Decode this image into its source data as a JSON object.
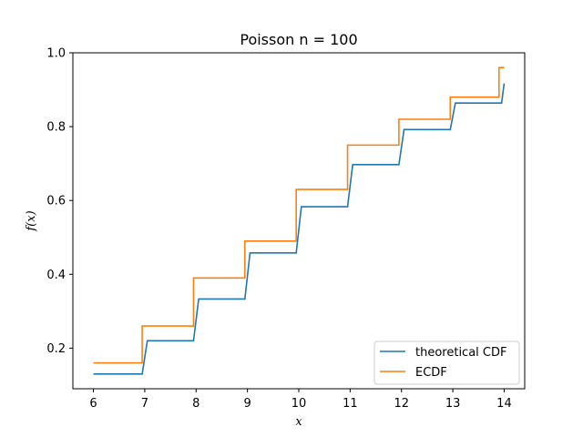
{
  "chart_data": {
    "type": "line",
    "title": "Poisson n = 100",
    "xlabel": "x",
    "ylabel": "f(x)",
    "xlim": [
      5.6,
      14.4
    ],
    "ylim": [
      0.09,
      1.0
    ],
    "xticks": [
      "6",
      "7",
      "8",
      "9",
      "10",
      "11",
      "12",
      "13",
      "14"
    ],
    "yticks": [
      "0.2",
      "0.4",
      "0.6",
      "0.8",
      "1.0"
    ],
    "grid": false,
    "legend_position": "lower-right",
    "series": [
      {
        "name": "theoretical CDF",
        "color": "#1f77b4",
        "x": [
          6,
          6.95,
          7.05,
          7.95,
          8.05,
          8.95,
          9.05,
          9.95,
          10.05,
          10.95,
          11.05,
          11.95,
          12.05,
          12.95,
          13.05,
          13.95,
          14.0
        ],
        "y": [
          0.13,
          0.13,
          0.22,
          0.22,
          0.333,
          0.333,
          0.458,
          0.458,
          0.583,
          0.583,
          0.697,
          0.697,
          0.792,
          0.792,
          0.864,
          0.864,
          0.917
        ]
      },
      {
        "name": "ECDF",
        "color": "#ff7f0e",
        "x": [
          6,
          6.95,
          6.95,
          7.95,
          7.95,
          8.95,
          8.95,
          9.95,
          9.95,
          10.95,
          10.95,
          11.95,
          11.95,
          12.95,
          12.95,
          13.9,
          13.9,
          14.0
        ],
        "y": [
          0.16,
          0.16,
          0.26,
          0.26,
          0.39,
          0.39,
          0.49,
          0.49,
          0.63,
          0.63,
          0.75,
          0.75,
          0.82,
          0.82,
          0.88,
          0.88,
          0.96,
          0.96
        ]
      }
    ]
  }
}
